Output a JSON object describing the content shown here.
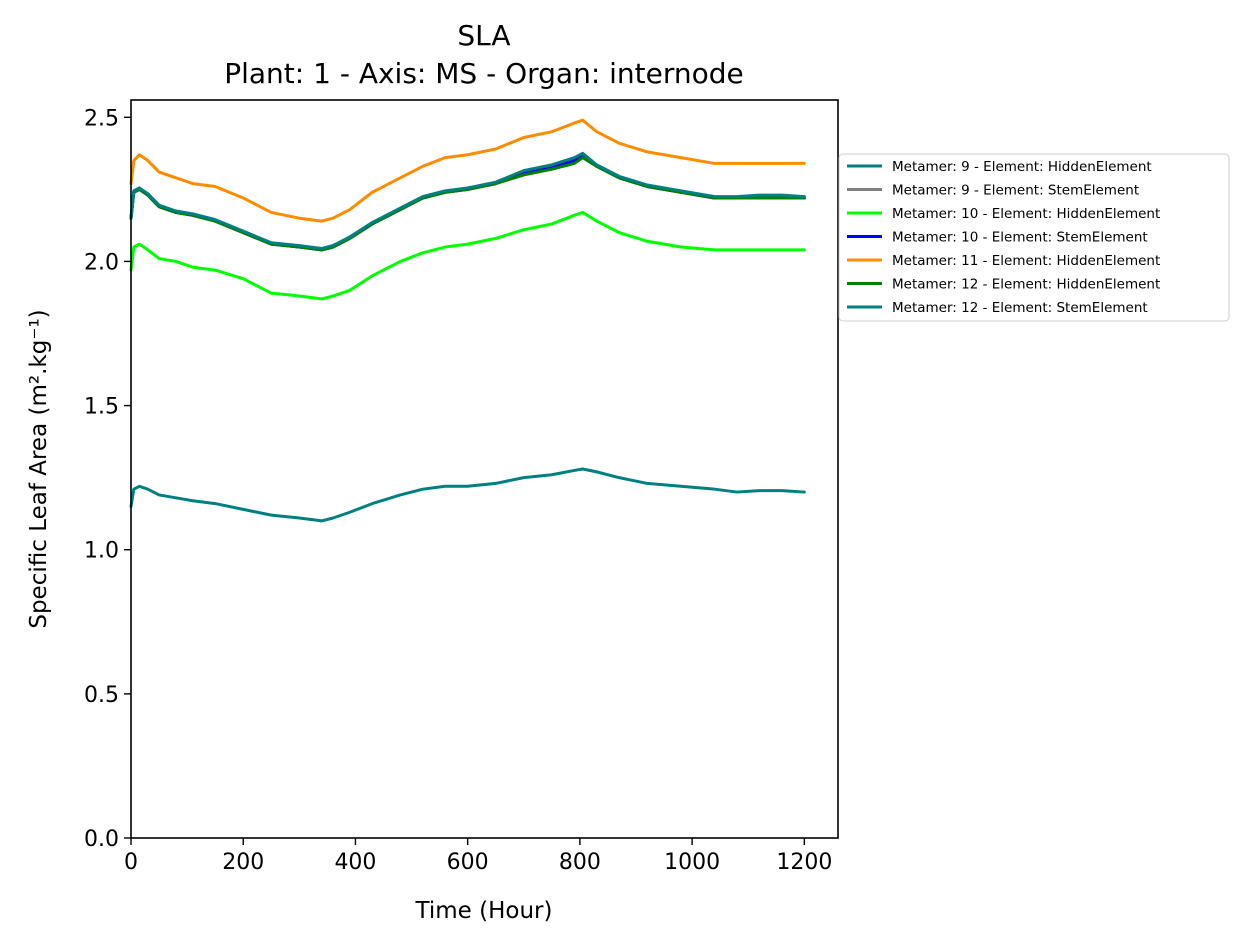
{
  "chart_data": {
    "type": "line",
    "title": "SLA",
    "subtitle": "Plant: 1 - Axis: MS - Organ: internode",
    "xlabel": "Time (Hour)",
    "ylabel": "Specific Leaf Area (m².kg⁻¹)",
    "xlim": [
      0,
      1260
    ],
    "ylim": [
      0,
      2.56
    ],
    "xticks": [
      0,
      200,
      400,
      600,
      800,
      1000,
      1200
    ],
    "yticks": [
      0.0,
      0.5,
      1.0,
      1.5,
      2.0,
      2.5
    ],
    "xtick_labels": [
      "0",
      "200",
      "400",
      "600",
      "800",
      "1000",
      "1200"
    ],
    "ytick_labels": [
      "0.0",
      "0.5",
      "1.0",
      "1.5",
      "2.0",
      "2.5"
    ],
    "grid": false,
    "legend_position": "outside-right",
    "series": [
      {
        "name": "Metamer: 9 - Element: HiddenElement",
        "color": "#008080",
        "x": [
          0,
          5,
          15,
          30,
          50,
          80,
          110,
          150,
          200,
          250,
          300,
          340,
          360,
          390,
          430,
          480,
          520,
          560,
          600,
          650,
          700,
          750,
          790,
          805,
          830,
          870,
          920,
          980,
          1040,
          1080,
          1120,
          1160,
          1200
        ],
        "y": [
          1.15,
          1.21,
          1.22,
          1.21,
          1.19,
          1.18,
          1.17,
          1.16,
          1.14,
          1.12,
          1.11,
          1.1,
          1.11,
          1.13,
          1.16,
          1.19,
          1.21,
          1.22,
          1.22,
          1.23,
          1.25,
          1.26,
          1.275,
          1.28,
          1.27,
          1.25,
          1.23,
          1.22,
          1.21,
          1.2,
          1.205,
          1.205,
          1.2
        ]
      },
      {
        "name": "Metamer: 9 - Element: StemElement",
        "color": "#808080",
        "x": [
          0,
          5,
          15,
          30,
          50,
          80,
          110,
          150,
          200,
          250,
          300,
          340,
          360,
          390,
          430,
          480,
          520,
          560,
          600,
          650,
          700,
          750,
          790,
          805,
          830,
          870,
          920,
          980,
          1040,
          1080,
          1120,
          1160,
          1200
        ],
        "y": [
          2.15,
          2.24,
          2.25,
          2.23,
          2.19,
          2.17,
          2.16,
          2.14,
          2.1,
          2.06,
          2.05,
          2.04,
          2.05,
          2.08,
          2.13,
          2.18,
          2.22,
          2.24,
          2.25,
          2.27,
          2.31,
          2.33,
          2.35,
          2.37,
          2.33,
          2.29,
          2.26,
          2.24,
          2.22,
          2.22,
          2.225,
          2.225,
          2.22
        ]
      },
      {
        "name": "Metamer: 10 - Element: HiddenElement",
        "color": "#00ff00",
        "x": [
          0,
          5,
          15,
          30,
          50,
          80,
          110,
          150,
          200,
          250,
          300,
          340,
          360,
          390,
          430,
          480,
          520,
          560,
          600,
          650,
          700,
          750,
          790,
          805,
          830,
          870,
          920,
          980,
          1040,
          1080,
          1120,
          1160,
          1200
        ],
        "y": [
          1.97,
          2.05,
          2.06,
          2.04,
          2.01,
          2.0,
          1.98,
          1.97,
          1.94,
          1.89,
          1.88,
          1.87,
          1.88,
          1.9,
          1.95,
          2.0,
          2.03,
          2.05,
          2.06,
          2.08,
          2.11,
          2.13,
          2.16,
          2.17,
          2.14,
          2.1,
          2.07,
          2.05,
          2.04,
          2.04,
          2.04,
          2.04,
          2.04
        ]
      },
      {
        "name": "Metamer: 10 - Element: StemElement",
        "color": "#0000ff",
        "x": [
          0,
          5,
          15,
          30,
          50,
          80,
          110,
          150,
          200,
          250,
          300,
          340,
          360,
          390,
          430,
          480,
          520,
          560,
          600,
          650,
          700,
          750,
          790,
          805,
          830,
          870,
          920,
          980,
          1040,
          1080,
          1120,
          1160,
          1200
        ],
        "y": [
          2.15,
          2.24,
          2.25,
          2.23,
          2.19,
          2.17,
          2.16,
          2.14,
          2.1,
          2.06,
          2.05,
          2.04,
          2.05,
          2.08,
          2.13,
          2.18,
          2.22,
          2.24,
          2.25,
          2.27,
          2.31,
          2.33,
          2.35,
          2.37,
          2.33,
          2.29,
          2.26,
          2.24,
          2.22,
          2.22,
          2.225,
          2.225,
          2.22
        ]
      },
      {
        "name": "Metamer: 11 - Element: HiddenElement",
        "color": "#ff8c00",
        "x": [
          0,
          5,
          15,
          30,
          50,
          80,
          110,
          150,
          200,
          250,
          300,
          340,
          360,
          390,
          430,
          480,
          520,
          560,
          600,
          650,
          700,
          750,
          790,
          805,
          830,
          870,
          920,
          980,
          1040,
          1080,
          1120,
          1160,
          1200
        ],
        "y": [
          2.27,
          2.35,
          2.37,
          2.35,
          2.31,
          2.29,
          2.27,
          2.26,
          2.22,
          2.17,
          2.15,
          2.14,
          2.15,
          2.18,
          2.24,
          2.29,
          2.33,
          2.36,
          2.37,
          2.39,
          2.43,
          2.45,
          2.48,
          2.49,
          2.45,
          2.41,
          2.38,
          2.36,
          2.34,
          2.34,
          2.34,
          2.34,
          2.34
        ]
      },
      {
        "name": "Metamer: 12 - Element: HiddenElement",
        "color": "#008000",
        "x": [
          0,
          5,
          15,
          30,
          50,
          80,
          110,
          150,
          200,
          250,
          300,
          340,
          360,
          390,
          430,
          480,
          520,
          560,
          600,
          650,
          700,
          750,
          790,
          805,
          830,
          870,
          920,
          980,
          1040,
          1080,
          1120,
          1160,
          1200
        ],
        "y": [
          2.15,
          2.24,
          2.25,
          2.23,
          2.19,
          2.17,
          2.16,
          2.14,
          2.1,
          2.06,
          2.05,
          2.04,
          2.05,
          2.08,
          2.13,
          2.18,
          2.22,
          2.24,
          2.25,
          2.27,
          2.3,
          2.32,
          2.34,
          2.36,
          2.33,
          2.29,
          2.26,
          2.24,
          2.22,
          2.22,
          2.22,
          2.22,
          2.22
        ]
      },
      {
        "name": "Metamer: 12 - Element: StemElement",
        "color": "#008080",
        "x": [
          0,
          5,
          15,
          30,
          50,
          80,
          110,
          150,
          200,
          250,
          300,
          340,
          360,
          390,
          430,
          480,
          520,
          560,
          600,
          650,
          700,
          750,
          790,
          805,
          830,
          870,
          920,
          980,
          1040,
          1080,
          1120,
          1160,
          1200
        ],
        "y": [
          2.15,
          2.245,
          2.255,
          2.235,
          2.195,
          2.175,
          2.165,
          2.145,
          2.105,
          2.065,
          2.055,
          2.045,
          2.055,
          2.085,
          2.135,
          2.185,
          2.225,
          2.245,
          2.255,
          2.275,
          2.315,
          2.335,
          2.36,
          2.375,
          2.335,
          2.295,
          2.265,
          2.245,
          2.225,
          2.225,
          2.23,
          2.23,
          2.225
        ]
      }
    ]
  }
}
